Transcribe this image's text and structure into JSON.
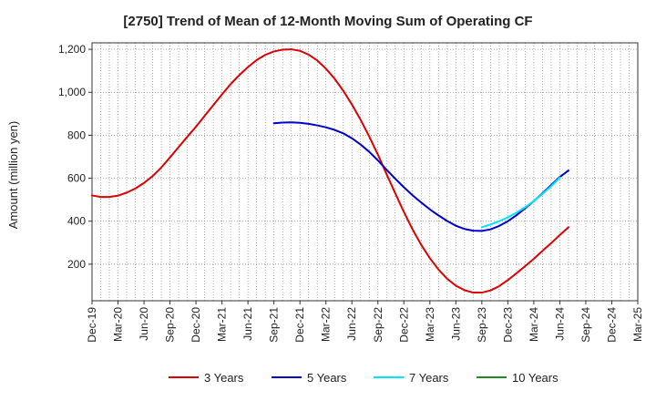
{
  "chart_data": {
    "type": "line",
    "title": "[2750]  Trend of Mean of 12-Month Moving Sum of Operating CF",
    "xlabel": "",
    "ylabel": "Amount (million yen)",
    "ylim": [
      30,
      1230
    ],
    "yticks": [
      200,
      400,
      600,
      800,
      1000,
      1200
    ],
    "ytick_labels": [
      "200",
      "400",
      "600",
      "800",
      "1,000",
      "1,200"
    ],
    "x_start": "Dec-19",
    "x_end": "Mar-25",
    "xtick_labels": [
      "Dec-19",
      "Mar-20",
      "Jun-20",
      "Sep-20",
      "Dec-20",
      "Mar-21",
      "Jun-21",
      "Sep-21",
      "Dec-21",
      "Mar-22",
      "Jun-22",
      "Sep-22",
      "Dec-22",
      "Mar-23",
      "Jun-23",
      "Sep-23",
      "Dec-23",
      "Mar-24",
      "Jun-24",
      "Sep-24",
      "Dec-24",
      "Mar-25"
    ],
    "grid": true,
    "legend_position": "bottom",
    "series": [
      {
        "name": "3 Years",
        "color": "#dd0000",
        "start_month": 0,
        "values": [
          520,
          513,
          513,
          519,
          533,
          552,
          578,
          610,
          650,
          697,
          745,
          793,
          840,
          890,
          940,
          990,
          1038,
          1080,
          1117,
          1150,
          1174,
          1190,
          1198,
          1200,
          1193,
          1175,
          1148,
          1110,
          1063,
          1007,
          943,
          872,
          794,
          710,
          619,
          530,
          443,
          362,
          290,
          228,
          175,
          132,
          100,
          79,
          68,
          68,
          78,
          98,
          126,
          158,
          191,
          225,
          262,
          298,
          336,
          372
        ]
      },
      {
        "name": "5 Years",
        "color": "#0000cc",
        "start_month": 21,
        "values": [
          856,
          859,
          860,
          858,
          853,
          846,
          837,
          825,
          809,
          786,
          757,
          723,
          683,
          640,
          598,
          558,
          521,
          487,
          455,
          427,
          401,
          379,
          364,
          356,
          355,
          362,
          378,
          400,
          428,
          460,
          494,
          530,
          568,
          606,
          636
        ]
      },
      {
        "name": "7 Years",
        "color": "#00e5ff",
        "start_month": 45,
        "values": [
          372,
          385,
          400,
          418,
          440,
          465,
          494,
          527,
          563,
          603
        ]
      },
      {
        "name": "10 Years",
        "color": "#228822",
        "start_month": null,
        "values": []
      }
    ]
  }
}
